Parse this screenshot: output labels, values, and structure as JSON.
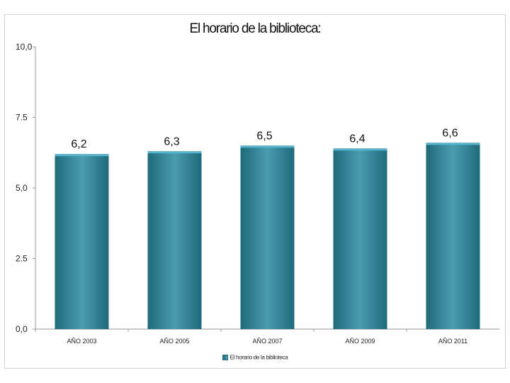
{
  "chart_data": {
    "type": "bar",
    "title": "El horario de la biblioteca:",
    "categories": [
      "AÑO 2003",
      "AÑO 2005",
      "AÑO 2007",
      "AÑO 2009",
      "AÑO 2011"
    ],
    "series": [
      {
        "name": "El horario de la biblioteca",
        "values": [
          6.2,
          6.3,
          6.5,
          6.4,
          6.6
        ]
      }
    ],
    "data_labels": [
      "6,2",
      "6,3",
      "6,5",
      "6,4",
      "6,6"
    ],
    "y_ticks": [
      {
        "value": 0,
        "label": "0,0"
      },
      {
        "value": 2.5,
        "label": "2.5"
      },
      {
        "value": 5,
        "label": "5,0"
      },
      {
        "value": 7.5,
        "label": "7.5"
      },
      {
        "value": 10,
        "label": "10,0"
      }
    ],
    "ylim": [
      0,
      10
    ],
    "xlabel": "",
    "ylabel": "",
    "grid": false,
    "legend_position": "bottom",
    "colors": {
      "bar_dark": "#1e6a7c",
      "bar_light": "#4b9cb0",
      "bar_top": "#58b4c8",
      "axis": "#9a9a9a"
    }
  }
}
